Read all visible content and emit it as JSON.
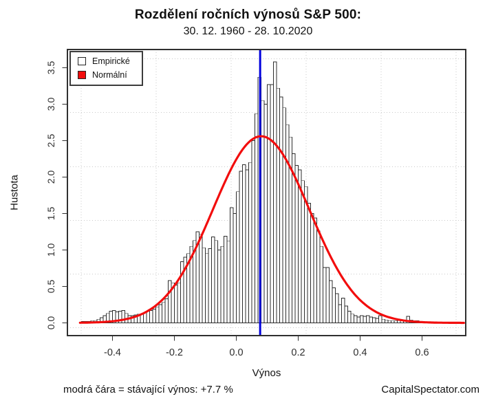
{
  "header": {
    "title": "Rozdělení ročních výnosů S&P 500:",
    "subtitle": "30. 12. 1960 - 28. 10.2020"
  },
  "footer": {
    "note": "modrá čára = stávající výnos: +7.7 %",
    "credit": "CapitalSpectator.com"
  },
  "chart_data": {
    "type": "bar",
    "subtype": "histogram-with-normal-overlay",
    "title": "Rozdělení ročních výnosů S&P 500:",
    "subtitle": "30. 12. 1960 - 28. 10.2020",
    "xlabel": "Výnos",
    "ylabel": "Hustota",
    "x_ticks": [
      -0.4,
      -0.2,
      0.0,
      0.2,
      0.4,
      0.6
    ],
    "y_ticks": [
      0.0,
      0.5,
      1.0,
      1.5,
      2.0,
      2.5,
      3.0,
      3.5
    ],
    "xlim": [
      -0.544,
      0.742
    ],
    "ylim": [
      -0.18,
      3.745
    ],
    "grid": {
      "on": true,
      "x_values": [
        -0.501,
        -0.259,
        -0.017,
        0.226,
        0.468,
        0.71
      ],
      "y_values": [
        -0.066,
        0.67,
        1.406,
        2.142,
        2.887,
        3.623
      ]
    },
    "legend": {
      "position": "top-left",
      "items": [
        {
          "label": "Empirické",
          "fill": "#ffffff",
          "stroke": "#222222"
        },
        {
          "label": "Normální",
          "fill": "#f20d0d",
          "stroke": "#222222"
        }
      ]
    },
    "histogram": {
      "name": "Empirické",
      "bin_start": -0.5,
      "bin_width": 0.01,
      "bar_fill": "#ffffff",
      "bar_stroke": "#2b2b2b",
      "densities": [
        0.02,
        0.02,
        0.02,
        0.03,
        0.03,
        0.05,
        0.07,
        0.1,
        0.13,
        0.16,
        0.17,
        0.15,
        0.16,
        0.17,
        0.13,
        0.1,
        0.1,
        0.11,
        0.12,
        0.12,
        0.14,
        0.16,
        0.17,
        0.19,
        0.22,
        0.25,
        0.28,
        0.33,
        0.58,
        0.55,
        0.52,
        0.55,
        0.84,
        0.9,
        0.95,
        1.05,
        1.13,
        1.25,
        1.22,
        1.03,
        0.95,
        1.02,
        1.18,
        1.13,
        1.0,
        1.05,
        1.19,
        1.12,
        1.58,
        1.5,
        1.8,
        2.08,
        2.17,
        2.1,
        2.2,
        2.5,
        2.87,
        3.37,
        3.05,
        3.0,
        3.27,
        3.27,
        3.58,
        3.22,
        3.1,
        2.95,
        2.72,
        2.55,
        2.32,
        2.16,
        2.1,
        1.95,
        1.87,
        1.64,
        1.5,
        1.44,
        1.26,
        1.05,
        0.76,
        0.76,
        0.58,
        0.48,
        0.4,
        0.25,
        0.34,
        0.23,
        0.16,
        0.12,
        0.1,
        0.08,
        0.1,
        0.09,
        0.1,
        0.08,
        0.07,
        0.06,
        0.1,
        0.05,
        0.04,
        0.03,
        0.03,
        0.03,
        0.03,
        0.03,
        0.03,
        0.09,
        0.04,
        0.03,
        0.03,
        0.02
      ]
    },
    "normal_curve": {
      "name": "Normální",
      "mean": 0.08,
      "sd": 0.156,
      "peak_density": 2.56,
      "x_range": [
        -0.505,
        0.737
      ],
      "color": "#f20d0d",
      "width": 3.2
    },
    "vline": {
      "x": 0.077,
      "label_value": "+7.7 %",
      "color": "#0101dd",
      "width": 3
    }
  }
}
